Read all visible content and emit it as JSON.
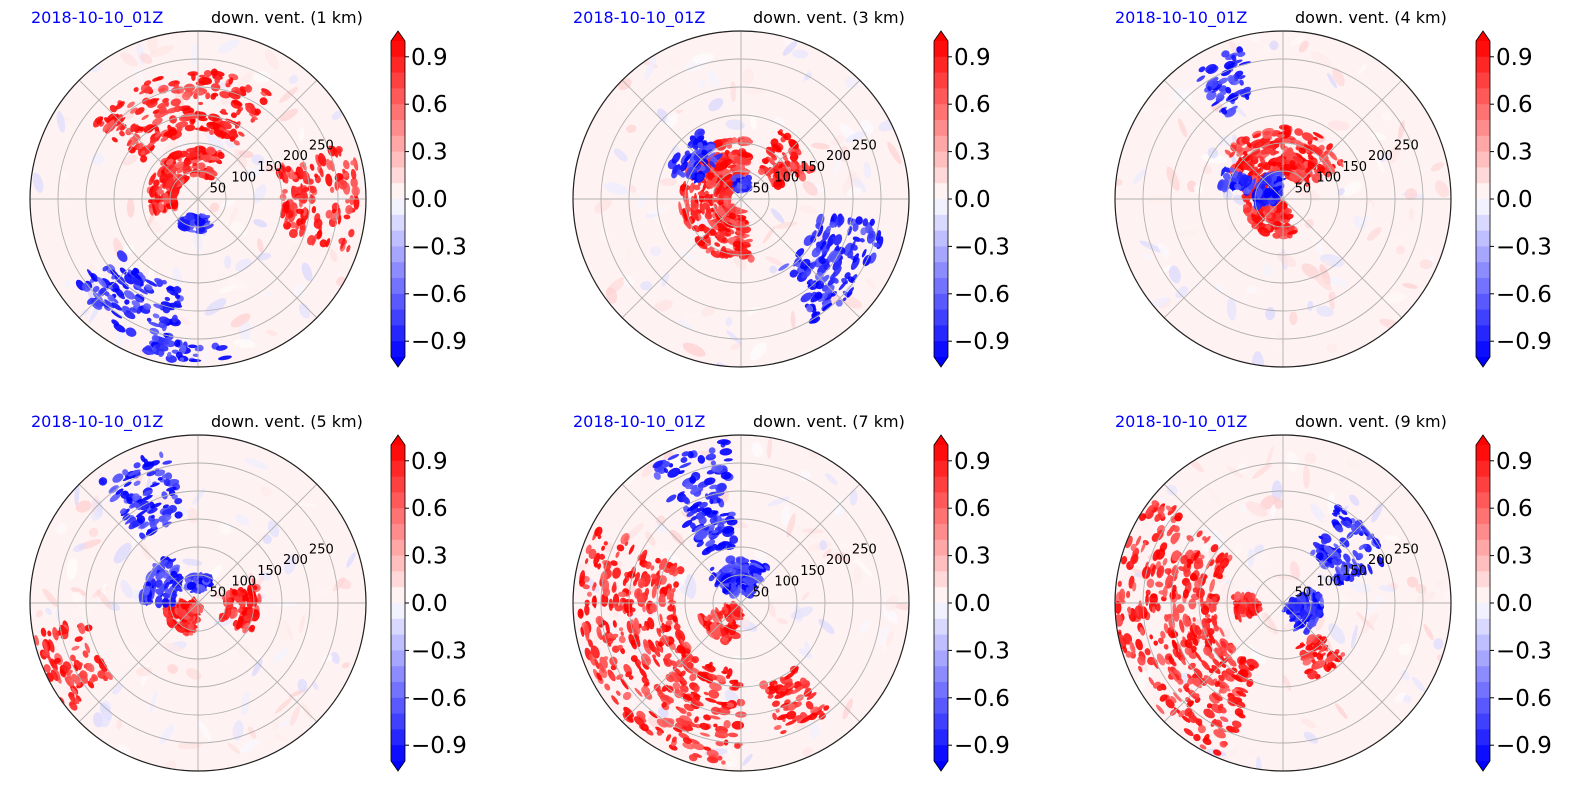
{
  "figure": {
    "date_color": "#0000ff",
    "title_color": "#000000",
    "colormap": "bwr",
    "colorbar_ticks": [
      "0.9",
      "0.6",
      "0.3",
      "0.0",
      "−0.3",
      "−0.6",
      "−0.9"
    ]
  },
  "panels": [
    {
      "date": "2018-10-10_01Z",
      "title": "down. vent. (1 km)"
    },
    {
      "date": "2018-10-10_01Z",
      "title": "down. vent. (3 km)"
    },
    {
      "date": "2018-10-10_01Z",
      "title": "down. vent. (4 km)"
    },
    {
      "date": "2018-10-10_01Z",
      "title": "down. vent. (5 km)"
    },
    {
      "date": "2018-10-10_01Z",
      "title": "down. vent. (7 km)"
    },
    {
      "date": "2018-10-10_01Z",
      "title": "down. vent. (9 km)"
    }
  ],
  "chart_data": [
    {
      "type": "heatmap",
      "projection": "polar",
      "title": "down. vent. (1 km)",
      "r_ticks": [
        "50",
        "100",
        "150",
        "200",
        "250"
      ],
      "r_range": [
        0,
        300
      ],
      "colorbar": {
        "range": [
          -1.0,
          1.0
        ],
        "ticks": [
          0.9,
          0.6,
          0.3,
          0.0,
          -0.3,
          -0.6,
          -0.9
        ],
        "extend": "both"
      },
      "features": [
        {
          "sign": "positive",
          "a0": 55,
          "a1": 145,
          "r0": 120,
          "r1": 230
        },
        {
          "sign": "positive",
          "a0": 340,
          "a1": 380,
          "r0": 150,
          "r1": 290
        },
        {
          "sign": "positive",
          "a0": 60,
          "a1": 200,
          "r0": 40,
          "r1": 90
        },
        {
          "sign": "negative",
          "a0": 230,
          "a1": 290,
          "r0": 30,
          "r1": 60
        },
        {
          "sign": "negative",
          "a0": 215,
          "a1": 260,
          "r0": 160,
          "r1": 270
        },
        {
          "sign": "negative",
          "a0": 250,
          "a1": 280,
          "r0": 260,
          "r1": 290
        }
      ]
    },
    {
      "type": "heatmap",
      "projection": "polar",
      "title": "down. vent. (3 km)",
      "r_ticks": [
        "50",
        "100",
        "150",
        "200",
        "250"
      ],
      "r_range": [
        0,
        300
      ],
      "colorbar": {
        "range": [
          -1.0,
          1.0
        ],
        "ticks": [
          0.9,
          0.6,
          0.3,
          0.0,
          -0.3,
          -0.6,
          -0.9
        ],
        "extend": "both"
      },
      "features": [
        {
          "sign": "positive",
          "a0": 80,
          "a1": 280,
          "r0": 20,
          "r1": 110
        },
        {
          "sign": "positive",
          "a0": 20,
          "a1": 60,
          "r0": 60,
          "r1": 140
        },
        {
          "sign": "negative",
          "a0": 60,
          "a1": 110,
          "r0": 15,
          "r1": 40
        },
        {
          "sign": "negative",
          "a0": 120,
          "a1": 160,
          "r0": 80,
          "r1": 140
        },
        {
          "sign": "negative",
          "a0": 300,
          "a1": 350,
          "r0": 140,
          "r1": 260
        }
      ]
    },
    {
      "type": "heatmap",
      "projection": "polar",
      "title": "down. vent. (4 km)",
      "r_ticks": [
        "50",
        "100",
        "150",
        "200",
        "250"
      ],
      "r_range": [
        0,
        300
      ],
      "colorbar": {
        "range": [
          -1.0,
          1.0
        ],
        "ticks": [
          0.9,
          0.6,
          0.3,
          0.0,
          -0.3,
          -0.6,
          -0.9
        ],
        "extend": "both"
      },
      "features": [
        {
          "sign": "positive",
          "a0": 30,
          "a1": 150,
          "r0": 40,
          "r1": 130
        },
        {
          "sign": "positive",
          "a0": 150,
          "a1": 290,
          "r0": 10,
          "r1": 70
        },
        {
          "sign": "negative",
          "a0": 100,
          "a1": 200,
          "r0": 10,
          "r1": 50
        },
        {
          "sign": "negative",
          "a0": 105,
          "a1": 125,
          "r0": 180,
          "r1": 280
        },
        {
          "sign": "negative",
          "a0": 150,
          "a1": 170,
          "r0": 60,
          "r1": 120
        }
      ]
    },
    {
      "type": "heatmap",
      "projection": "polar",
      "title": "down. vent. (5 km)",
      "r_ticks": [
        "50",
        "100",
        "150",
        "200",
        "250"
      ],
      "r_range": [
        0,
        300
      ],
      "colorbar": {
        "range": [
          -1.0,
          1.0
        ],
        "ticks": [
          0.9,
          0.6,
          0.3,
          0.0,
          -0.3,
          -0.6,
          -0.9
        ],
        "extend": "both"
      },
      "features": [
        {
          "sign": "positive",
          "a0": 180,
          "a1": 260,
          "r0": 5,
          "r1": 60
        },
        {
          "sign": "positive",
          "a0": 190,
          "a1": 220,
          "r0": 200,
          "r1": 300
        },
        {
          "sign": "positive",
          "a0": 330,
          "a1": 380,
          "r0": 50,
          "r1": 110
        },
        {
          "sign": "negative",
          "a0": 100,
          "a1": 130,
          "r0": 150,
          "r1": 280
        },
        {
          "sign": "negative",
          "a0": 120,
          "a1": 180,
          "r0": 40,
          "r1": 100
        },
        {
          "sign": "negative",
          "a0": 60,
          "a1": 120,
          "r0": 20,
          "r1": 50
        }
      ]
    },
    {
      "type": "heatmap",
      "projection": "polar",
      "title": "down. vent. (7 km)",
      "r_ticks": [
        "50",
        "100",
        "150",
        "200",
        "250"
      ],
      "r_range": [
        0,
        300
      ],
      "colorbar": {
        "range": [
          -1.0,
          1.0
        ],
        "ticks": [
          0.9,
          0.6,
          0.3,
          0.0,
          -0.3,
          -0.6,
          -0.9
        ],
        "extend": "both"
      },
      "features": [
        {
          "sign": "positive",
          "a0": 150,
          "a1": 270,
          "r0": 120,
          "r1": 290
        },
        {
          "sign": "positive",
          "a0": 200,
          "a1": 260,
          "r0": 10,
          "r1": 80
        },
        {
          "sign": "positive",
          "a0": 285,
          "a1": 310,
          "r0": 150,
          "r1": 250
        },
        {
          "sign": "negative",
          "a0": 95,
          "a1": 125,
          "r0": 100,
          "r1": 290
        },
        {
          "sign": "negative",
          "a0": 50,
          "a1": 140,
          "r0": 20,
          "r1": 80
        }
      ]
    },
    {
      "type": "heatmap",
      "projection": "polar",
      "title": "down. vent. (9 km)",
      "r_ticks": [
        "50",
        "100",
        "150",
        "200",
        "250"
      ],
      "r_range": [
        0,
        300
      ],
      "colorbar": {
        "range": [
          -1.0,
          1.0
        ],
        "ticks": [
          0.9,
          0.6,
          0.3,
          0.0,
          -0.3,
          -0.6,
          -0.9
        ],
        "extend": "both"
      },
      "features": [
        {
          "sign": "positive",
          "a0": 140,
          "a1": 250,
          "r0": 120,
          "r1": 300
        },
        {
          "sign": "positive",
          "a0": 170,
          "a1": 200,
          "r0": 40,
          "r1": 90
        },
        {
          "sign": "positive",
          "a0": 290,
          "a1": 320,
          "r0": 80,
          "r1": 150
        },
        {
          "sign": "negative",
          "a0": 300,
          "a1": 380,
          "r0": 10,
          "r1": 70
        },
        {
          "sign": "negative",
          "a0": 20,
          "a1": 60,
          "r0": 100,
          "r1": 200
        }
      ]
    }
  ]
}
